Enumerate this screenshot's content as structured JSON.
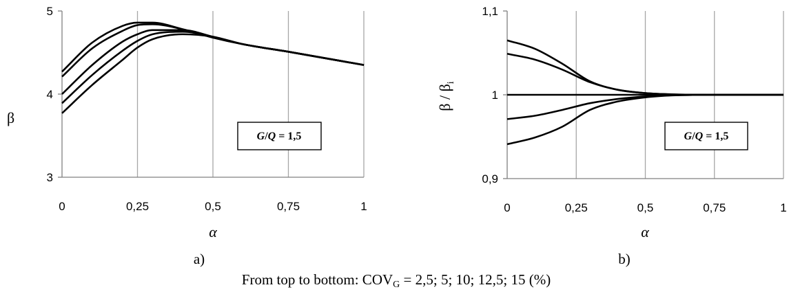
{
  "chart_data": [
    {
      "type": "line",
      "panel_label": "a)",
      "ylabel": "β",
      "xlabel": "α",
      "annotation": "G/Q = 1,5",
      "xlim": [
        0,
        1
      ],
      "ylim": [
        3,
        5
      ],
      "x_ticks": [
        "0",
        "0,25",
        "0,5",
        "0,75",
        "1"
      ],
      "y_ticks": [
        "5",
        "4",
        "3"
      ],
      "grid": "vertical",
      "series": [
        {
          "x": [
            0,
            0.1,
            0.2,
            0.25,
            0.3,
            0.4,
            0.5,
            0.6,
            0.75,
            1
          ],
          "values": [
            4.27,
            4.62,
            4.82,
            4.86,
            4.86,
            4.78,
            4.68,
            4.6,
            4.51,
            4.35
          ]
        },
        {
          "x": [
            0,
            0.1,
            0.2,
            0.25,
            0.3,
            0.4,
            0.5,
            0.6,
            0.75,
            1
          ],
          "values": [
            4.21,
            4.55,
            4.76,
            4.83,
            4.84,
            4.78,
            4.68,
            4.6,
            4.51,
            4.35
          ]
        },
        {
          "x": [
            0,
            0.1,
            0.2,
            0.25,
            0.3,
            0.4,
            0.5,
            0.6,
            0.75,
            1
          ],
          "values": [
            4.0,
            4.35,
            4.63,
            4.72,
            4.77,
            4.77,
            4.69,
            4.6,
            4.51,
            4.35
          ]
        },
        {
          "x": [
            0,
            0.1,
            0.2,
            0.25,
            0.3,
            0.4,
            0.5,
            0.6,
            0.75,
            1
          ],
          "values": [
            3.89,
            4.23,
            4.52,
            4.64,
            4.72,
            4.75,
            4.69,
            4.6,
            4.51,
            4.35
          ]
        },
        {
          "x": [
            0,
            0.1,
            0.2,
            0.25,
            0.3,
            0.4,
            0.5,
            0.6,
            0.75,
            1
          ],
          "values": [
            3.77,
            4.11,
            4.41,
            4.56,
            4.66,
            4.72,
            4.69,
            4.6,
            4.51,
            4.35
          ]
        }
      ]
    },
    {
      "type": "line",
      "panel_label": "b)",
      "ylabel": "β / βi",
      "xlabel": "α",
      "annotation": "G/Q = 1,5",
      "xlim": [
        0,
        1
      ],
      "ylim": [
        0.9,
        1.1
      ],
      "x_ticks": [
        "0",
        "0,25",
        "0,5",
        "0,75",
        "1"
      ],
      "y_ticks": [
        "1,1",
        "1",
        "0,9"
      ],
      "grid": "vertical",
      "series": [
        {
          "x": [
            0,
            0.1,
            0.2,
            0.3,
            0.4,
            0.5,
            0.6,
            0.75,
            1
          ],
          "values": [
            1.065,
            1.055,
            1.037,
            1.016,
            1.006,
            1.002,
            1.0005,
            1.0,
            1.0
          ]
        },
        {
          "x": [
            0,
            0.1,
            0.2,
            0.3,
            0.4,
            0.5,
            0.6,
            0.75,
            1
          ],
          "values": [
            1.049,
            1.042,
            1.03,
            1.015,
            1.006,
            1.002,
            1.0005,
            1.0,
            1.0
          ]
        },
        {
          "x": [
            0,
            0.1,
            0.2,
            0.3,
            0.4,
            0.5,
            0.6,
            0.75,
            1
          ],
          "values": [
            1.0,
            1.0,
            1.0,
            1.0,
            1.0,
            1.0,
            1.0,
            1.0,
            1.0
          ]
        },
        {
          "x": [
            0,
            0.1,
            0.2,
            0.3,
            0.4,
            0.5,
            0.6,
            0.75,
            1
          ],
          "values": [
            0.971,
            0.975,
            0.982,
            0.99,
            0.995,
            0.998,
            0.9995,
            1.0,
            1.0
          ]
        },
        {
          "x": [
            0,
            0.1,
            0.2,
            0.3,
            0.4,
            0.5,
            0.6,
            0.75,
            1
          ],
          "values": [
            0.941,
            0.949,
            0.962,
            0.982,
            0.992,
            0.997,
            0.9993,
            1.0,
            1.0
          ]
        }
      ]
    }
  ],
  "caption": {
    "prefix": "From top to bottom: COV",
    "subscript": "G",
    "suffix": " = 2,5; 5; 10; 12,5; 15 (%)"
  }
}
